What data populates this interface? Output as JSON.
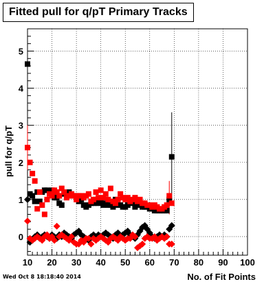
{
  "title": "Fitted pull for q/pT Primary Tracks",
  "timestamp": "Wed Oct  8 18:18:40 2014",
  "chart_data": {
    "type": "scatter",
    "title": "Fitted pull for q/pT Primary Tracks",
    "xlabel": "No. of Fit Points",
    "ylabel": "pull for q/pT",
    "xlim": [
      10,
      100
    ],
    "ylim": [
      -0.5,
      5.6
    ],
    "xticks": [
      10,
      20,
      30,
      40,
      50,
      60,
      70,
      80,
      90,
      100
    ],
    "yticks": [
      0,
      1,
      2,
      3,
      4,
      5
    ],
    "grid": true,
    "series": [
      {
        "marker": "square",
        "color": "#000000",
        "x": [
          10,
          11,
          12,
          13,
          14,
          15,
          16,
          17,
          18,
          19,
          20,
          21,
          22,
          23,
          24,
          25,
          26,
          27,
          28,
          29,
          30,
          31,
          32,
          33,
          34,
          35,
          36,
          37,
          38,
          39,
          40,
          41,
          42,
          43,
          44,
          45,
          46,
          47,
          48,
          49,
          50,
          51,
          52,
          53,
          54,
          55,
          56,
          57,
          58,
          59,
          60,
          61,
          62,
          63,
          64,
          65,
          66,
          67,
          68,
          69
        ],
        "y": [
          4.65,
          1.15,
          1.1,
          0.95,
          1.2,
          0.95,
          1.2,
          1.25,
          1.25,
          1.2,
          1.25,
          1.05,
          1.05,
          0.9,
          0.85,
          1.15,
          1.15,
          1.2,
          1.1,
          1.1,
          1.1,
          0.95,
          1.0,
          0.85,
          0.8,
          0.85,
          0.9,
          0.9,
          1.0,
          0.9,
          0.95,
          0.85,
          0.9,
          0.85,
          0.85,
          0.8,
          1.0,
          0.85,
          0.85,
          0.8,
          0.8,
          0.85,
          0.95,
          0.9,
          0.8,
          0.85,
          0.95,
          0.8,
          0.8,
          0.8,
          0.75,
          0.75,
          0.7,
          0.7,
          0.7,
          0.7,
          0.7,
          0.7,
          1.0,
          2.15
        ]
      },
      {
        "marker": "diamond",
        "color": "#000000",
        "x": [
          10,
          11,
          12,
          13,
          14,
          15,
          16,
          17,
          18,
          19,
          20,
          21,
          22,
          23,
          24,
          25,
          26,
          27,
          28,
          29,
          30,
          31,
          32,
          33,
          34,
          35,
          36,
          37,
          38,
          39,
          40,
          41,
          42,
          43,
          44,
          45,
          46,
          47,
          48,
          49,
          50,
          51,
          52,
          53,
          54,
          55,
          56,
          57,
          58,
          59,
          60,
          61,
          62,
          63,
          64,
          65,
          66,
          67,
          68,
          69
        ],
        "y": [
          1.0,
          -0.15,
          -0.1,
          0.0,
          0.05,
          -0.05,
          0.0,
          0.05,
          0.0,
          -0.05,
          0.05,
          0.0,
          -0.05,
          0.05,
          0.0,
          0.1,
          0.05,
          0.0,
          -0.05,
          0.05,
          0.1,
          0.15,
          0.05,
          0.0,
          -0.05,
          -0.1,
          0.0,
          0.05,
          0.0,
          0.05,
          0.0,
          0.05,
          0.1,
          0.05,
          0.0,
          -0.05,
          0.05,
          0.1,
          0.0,
          0.05,
          0.1,
          0.15,
          0.05,
          0.0,
          -0.05,
          0.05,
          0.15,
          0.25,
          0.3,
          0.2,
          0.1,
          0.0,
          -0.05,
          0.0,
          0.05,
          0.0,
          0.05,
          0.0,
          0.2,
          0.3
        ]
      },
      {
        "marker": "square",
        "color": "#ff0000",
        "x": [
          10,
          11,
          12,
          13,
          14,
          15,
          16,
          17,
          18,
          19,
          20,
          21,
          22,
          23,
          24,
          25,
          26,
          27,
          28,
          29,
          30,
          31,
          32,
          33,
          34,
          35,
          36,
          37,
          38,
          39,
          40,
          41,
          42,
          43,
          44,
          45,
          46,
          47,
          48,
          49,
          50,
          51,
          52,
          53,
          54,
          55,
          56,
          57,
          58,
          59,
          60,
          61,
          62,
          63,
          64,
          65,
          66,
          67,
          68,
          69
        ],
        "y": [
          2.4,
          2.0,
          1.7,
          1.5,
          0.75,
          1.2,
          0.85,
          0.6,
          1.0,
          1.15,
          1.1,
          1.25,
          1.2,
          1.1,
          1.3,
          1.2,
          1.05,
          1.1,
          1.15,
          1.1,
          1.0,
          1.1,
          1.1,
          1.05,
          1.1,
          1.15,
          0.95,
          1.0,
          1.2,
          1.05,
          1.25,
          1.05,
          1.15,
          1.0,
          1.3,
          0.95,
          0.9,
          1.0,
          1.15,
          1.05,
          1.0,
          1.05,
          0.95,
          1.0,
          1.05,
          0.95,
          1.0,
          0.9,
          0.9,
          0.85,
          0.85,
          0.8,
          0.85,
          0.8,
          0.75,
          0.75,
          0.8,
          0.85,
          1.1,
          0.9
        ]
      },
      {
        "marker": "diamond",
        "color": "#ff0000",
        "x": [
          10,
          11,
          12,
          13,
          14,
          15,
          16,
          17,
          18,
          19,
          20,
          21,
          22,
          23,
          24,
          25,
          26,
          27,
          28,
          29,
          30,
          31,
          32,
          33,
          34,
          35,
          36,
          37,
          38,
          39,
          40,
          41,
          42,
          43,
          44,
          45,
          46,
          47,
          48,
          49,
          50,
          51,
          52,
          53,
          54,
          55,
          56,
          57,
          58,
          59,
          60,
          61,
          62,
          63,
          64,
          65,
          66,
          67,
          68,
          69
        ],
        "y": [
          0.42,
          -0.05,
          -0.1,
          -0.05,
          0.0,
          -0.05,
          -0.1,
          0.0,
          0.05,
          -0.05,
          0.0,
          -0.1,
          0.28,
          0.0,
          0.05,
          0.0,
          -0.05,
          -0.1,
          0.0,
          -0.15,
          -0.2,
          -0.2,
          -0.1,
          -0.15,
          -0.05,
          -0.05,
          -0.2,
          -0.05,
          -0.1,
          -0.05,
          0.0,
          -0.05,
          -0.1,
          -0.15,
          -0.05,
          0.0,
          -0.05,
          -0.1,
          0.0,
          -0.05,
          -0.1,
          -0.05,
          -0.05,
          0.05,
          0.0,
          -0.3,
          -0.25,
          -0.2,
          -0.05,
          0.0,
          -0.05,
          -0.05,
          0.0,
          -0.1,
          -0.05,
          0.0,
          -0.05,
          0.0,
          -0.2,
          -0.2
        ]
      }
    ],
    "error_bars": [
      {
        "x": 69,
        "series": 0,
        "low": 1.0,
        "high": 3.35
      },
      {
        "x": 68,
        "series": 2,
        "low": 0.6,
        "high": 1.5
      },
      {
        "x": 10,
        "series": 0,
        "low": 4.4,
        "high": 4.9
      },
      {
        "x": 10,
        "series": 2,
        "low": 1.8,
        "high": 3.0
      }
    ]
  }
}
